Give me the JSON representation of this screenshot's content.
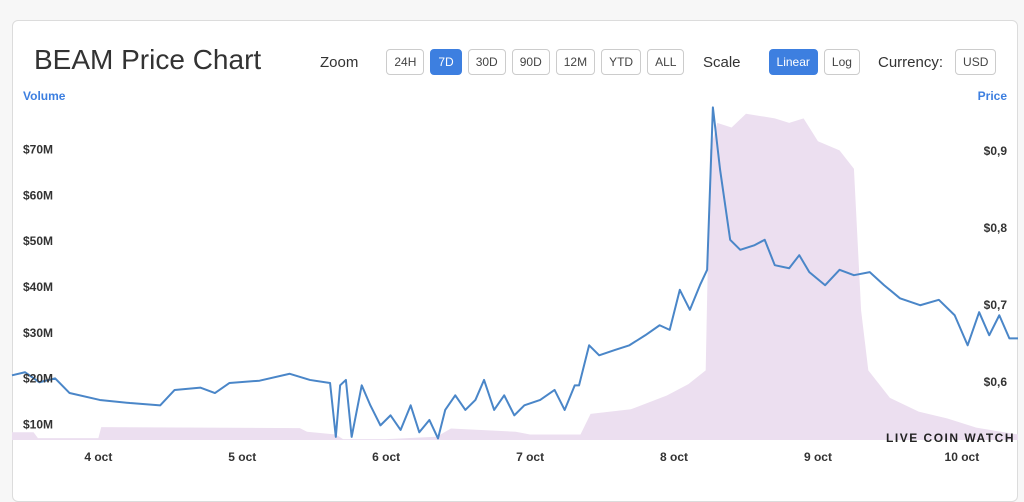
{
  "chart_data": {
    "type": "line",
    "title": "BEAM Price Chart",
    "xlim": [
      3.4,
      10.39
    ],
    "xticks": [
      {
        "value": 4,
        "label": "4 oct"
      },
      {
        "value": 5,
        "label": "5 oct"
      },
      {
        "value": 6,
        "label": "6 oct"
      },
      {
        "value": 7,
        "label": "7 oct"
      },
      {
        "value": 8,
        "label": "8 oct"
      },
      {
        "value": 9,
        "label": "9 oct"
      },
      {
        "value": 10,
        "label": "10 oct"
      }
    ],
    "ylim": [
      6.8,
      81
    ],
    "yticks": [
      {
        "value": 10,
        "label": "$10M"
      },
      {
        "value": 20,
        "label": "$20M"
      },
      {
        "value": 30,
        "label": "$30M"
      },
      {
        "value": 40,
        "label": "$40M"
      },
      {
        "value": 50,
        "label": "$50M"
      },
      {
        "value": 60,
        "label": "$60M"
      },
      {
        "value": 70,
        "label": "$70M"
      }
    ],
    "y2lim": [
      0.526,
      0.9675
    ],
    "y2ticks": [
      {
        "value": 0.6,
        "label": "$0,6"
      },
      {
        "value": 0.7,
        "label": "$0,7"
      },
      {
        "value": 0.8,
        "label": "$0,8"
      },
      {
        "value": 0.9,
        "label": "$0,9"
      }
    ],
    "series": [
      {
        "name": "Volume",
        "type": "area",
        "color": "#ecdff0",
        "x": [
          3.4,
          3.55,
          3.58,
          4.0,
          4.02,
          5.4,
          5.45,
          5.65,
          5.7,
          6.0,
          6.35,
          6.45,
          6.9,
          7.0,
          7.35,
          7.42,
          7.7,
          7.95,
          8.1,
          8.22,
          8.25,
          8.3,
          8.4,
          8.5,
          8.7,
          8.8,
          8.9,
          9.0,
          9.15,
          9.25,
          9.3,
          9.35,
          9.5,
          9.7,
          9.9,
          10.1,
          10.39
        ],
        "values": [
          8.5,
          8.5,
          7.2,
          7.2,
          9.6,
          9.4,
          8.6,
          8.0,
          7.0,
          7.0,
          7.5,
          9.3,
          8.6,
          8.0,
          8.0,
          12.5,
          13.5,
          16.5,
          19,
          22,
          70,
          76,
          75,
          78,
          77,
          76,
          77,
          72,
          70,
          66,
          35,
          22,
          16,
          13,
          11.5,
          9.5,
          8.0
        ]
      },
      {
        "name": "Price",
        "axis": "y2",
        "color": "#4a86c8",
        "x": [
          3.4,
          3.49,
          3.59,
          3.7,
          3.8,
          4.01,
          4.22,
          4.43,
          4.53,
          4.71,
          4.81,
          4.91,
          5.12,
          5.33,
          5.47,
          5.61,
          5.65,
          5.68,
          5.72,
          5.76,
          5.83,
          5.89,
          5.96,
          6.03,
          6.1,
          6.17,
          6.23,
          6.3,
          6.36,
          6.41,
          6.48,
          6.55,
          6.62,
          6.68,
          6.75,
          6.82,
          6.89,
          6.96,
          7.07,
          7.17,
          7.24,
          7.31,
          7.34,
          7.41,
          7.48,
          7.59,
          7.69,
          7.8,
          7.9,
          7.97,
          8.04,
          8.11,
          8.18,
          8.23,
          8.27,
          8.32,
          8.39,
          8.46,
          8.56,
          8.63,
          8.7,
          8.8,
          8.87,
          8.94,
          9.05,
          9.15,
          9.25,
          9.36,
          9.46,
          9.57,
          9.71,
          9.84,
          9.95,
          10.04,
          10.12,
          10.19,
          10.26,
          10.33,
          10.39
        ],
        "values": [
          0.61,
          0.614,
          0.601,
          0.606,
          0.587,
          0.578,
          0.574,
          0.571,
          0.591,
          0.594,
          0.587,
          0.6,
          0.603,
          0.612,
          0.604,
          0.6,
          0.53,
          0.597,
          0.604,
          0.53,
          0.597,
          0.571,
          0.545,
          0.558,
          0.539,
          0.571,
          0.536,
          0.552,
          0.528,
          0.565,
          0.584,
          0.565,
          0.578,
          0.604,
          0.565,
          0.584,
          0.558,
          0.571,
          0.578,
          0.591,
          0.565,
          0.597,
          0.597,
          0.649,
          0.636,
          0.643,
          0.649,
          0.662,
          0.675,
          0.669,
          0.721,
          0.695,
          0.727,
          0.747,
          0.958,
          0.877,
          0.786,
          0.773,
          0.779,
          0.786,
          0.753,
          0.749,
          0.766,
          0.744,
          0.727,
          0.747,
          0.74,
          0.744,
          0.727,
          0.71,
          0.701,
          0.708,
          0.688,
          0.649,
          0.692,
          0.662,
          0.688,
          0.658,
          0.658
        ]
      }
    ],
    "watermark": "LIVE COIN WATCH"
  },
  "controls": {
    "zoom": {
      "label": "Zoom",
      "options": [
        {
          "label": "24H",
          "active": false
        },
        {
          "label": "7D",
          "active": true
        },
        {
          "label": "30D",
          "active": false
        },
        {
          "label": "90D",
          "active": false
        },
        {
          "label": "12M",
          "active": false
        },
        {
          "label": "YTD",
          "active": false
        },
        {
          "label": "ALL",
          "active": false
        }
      ]
    },
    "scale": {
      "label": "Scale",
      "options": [
        {
          "label": "Linear",
          "active": true
        },
        {
          "label": "Log",
          "active": false
        }
      ]
    },
    "currency": {
      "label": "Currency:",
      "options": [
        {
          "label": "USD",
          "active": false
        }
      ]
    }
  }
}
